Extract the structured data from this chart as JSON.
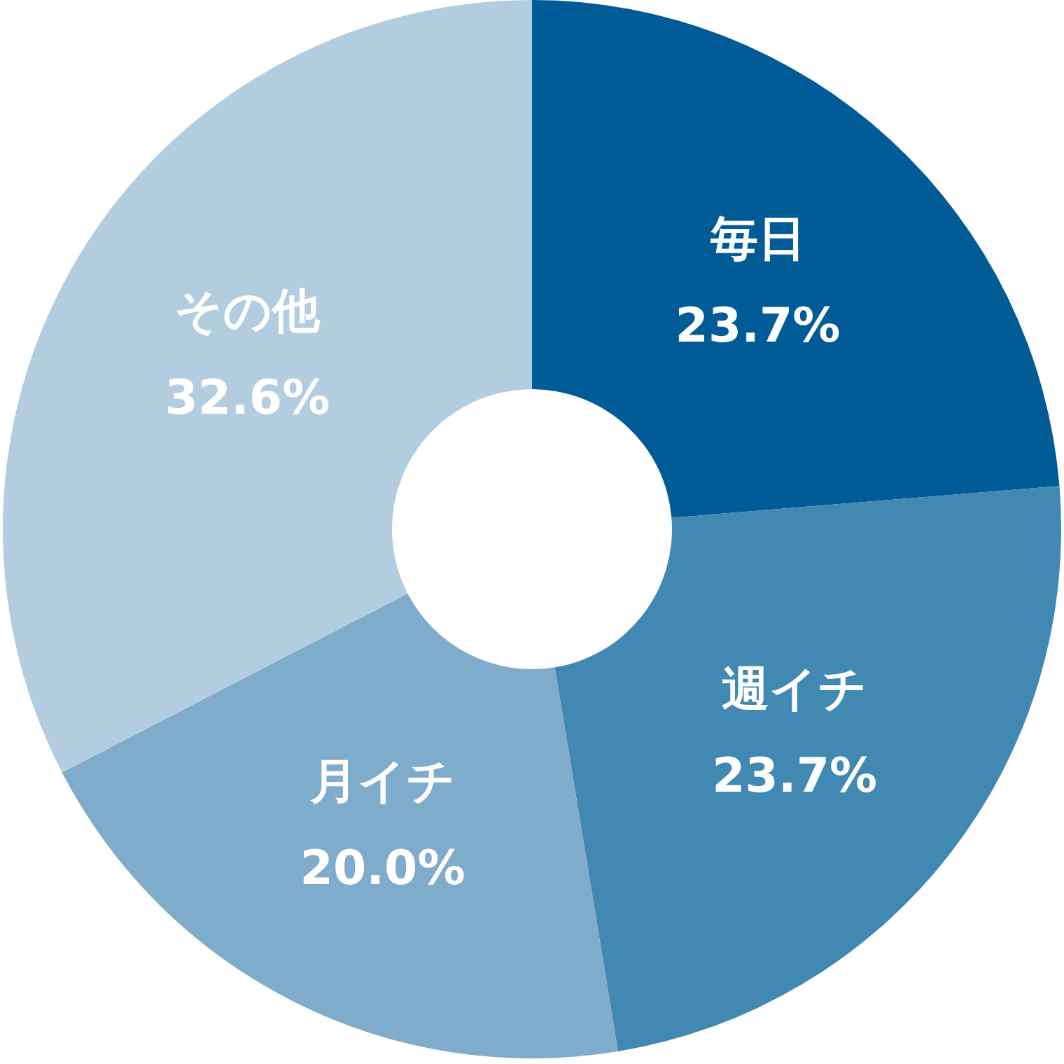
{
  "chart_data": {
    "type": "donut",
    "categories": [
      "毎日",
      "週イチ",
      "月イチ",
      "その他"
    ],
    "values": [
      23.7,
      23.7,
      20.0,
      32.6
    ],
    "colors": [
      "#005b96",
      "#4188b3",
      "#7facca",
      "#b3cde0"
    ],
    "value_labels": [
      "23.7%",
      "23.7%",
      "20.0%",
      "32.6%"
    ]
  }
}
